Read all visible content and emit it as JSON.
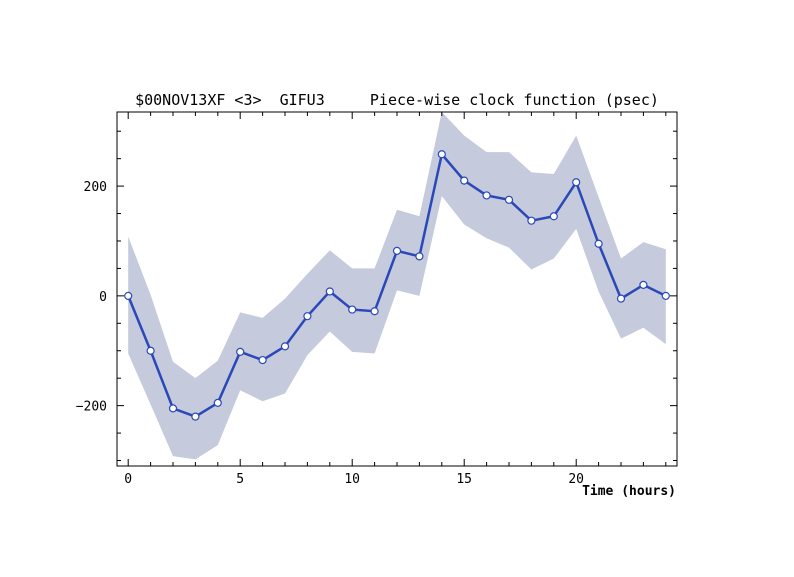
{
  "chart_data": {
    "type": "line",
    "title": "$00NOV13XF <3>  GIFU3     Piece-wise clock function (psec)",
    "xlabel": "Time (hours)",
    "ylabel": "",
    "xlim": [
      -0.5,
      24.5
    ],
    "ylim": [
      -310,
      335
    ],
    "xticks": [
      0,
      5,
      10,
      15,
      20
    ],
    "yticks": [
      -200,
      0,
      200
    ],
    "grid": false,
    "legend": "none",
    "colors": {
      "line": "#2a48b8",
      "band": "#c5cadc",
      "marker_fill": "#ffffff"
    },
    "series": [
      {
        "x": [
          0,
          1,
          2,
          3,
          4,
          5,
          6,
          7,
          8,
          9,
          10,
          11,
          12,
          13,
          14,
          15,
          16,
          17,
          18,
          19,
          20,
          21,
          22,
          23,
          24
        ],
        "values": [
          0,
          -100,
          -205,
          -220,
          -195,
          -102,
          -117,
          -92,
          -37,
          8,
          -25,
          -28,
          82,
          72,
          258,
          210,
          183,
          175,
          137,
          145,
          207,
          95,
          -5,
          20,
          0
        ],
        "upper": [
          108,
          2,
          -120,
          -150,
          -118,
          -30,
          -40,
          -5,
          40,
          83,
          50,
          50,
          157,
          145,
          335,
          292,
          262,
          262,
          225,
          222,
          292,
          180,
          68,
          98,
          85
        ],
        "lower": [
          -105,
          -198,
          -292,
          -298,
          -272,
          -172,
          -192,
          -178,
          -108,
          -65,
          -102,
          -105,
          10,
          0,
          182,
          130,
          105,
          88,
          48,
          68,
          122,
          8,
          -78,
          -58,
          -88
        ]
      }
    ]
  }
}
